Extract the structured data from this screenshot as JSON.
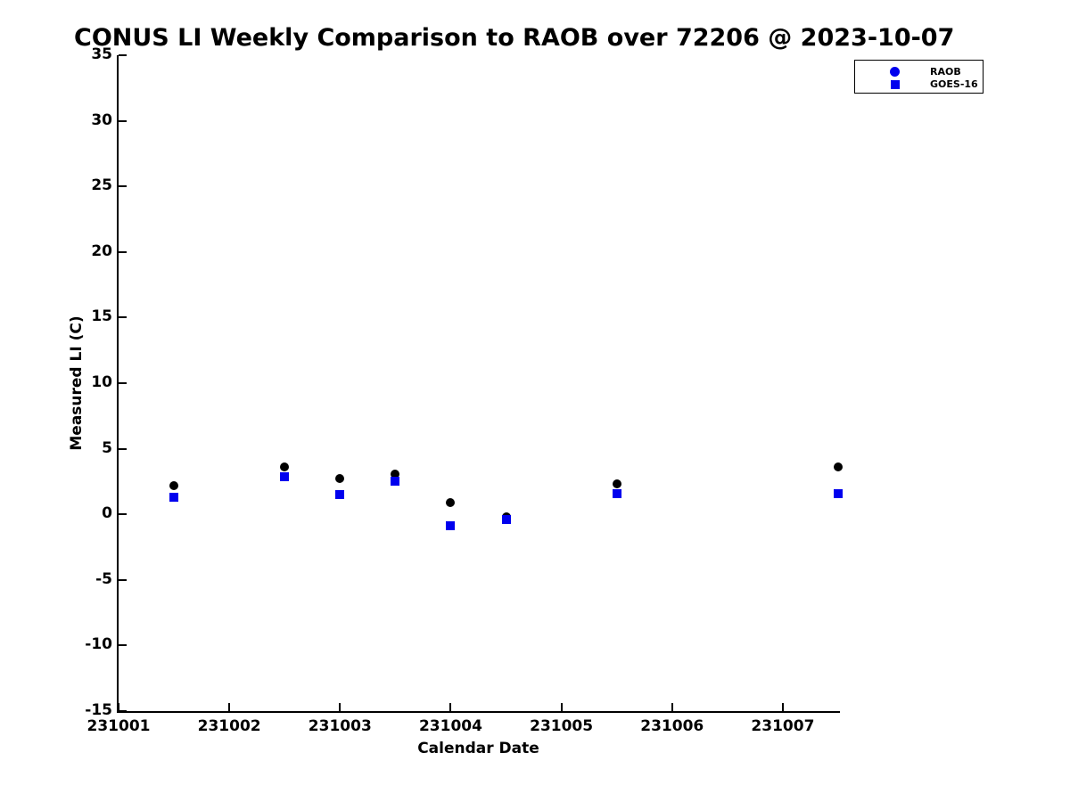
{
  "title": "CONUS LI Weekly Comparison to RAOB over 72206 @ 2023-10-07",
  "colors": {
    "raob_marker": "#000000",
    "goes16_marker": "#0000ee",
    "legend_marker": "#0000ee",
    "axis": "#000000",
    "background": "#ffffff"
  },
  "chart_data": {
    "type": "scatter",
    "title": "CONUS LI Weekly Comparison to RAOB over 72206 @ 2023-10-07",
    "xlabel": "Calendar Date",
    "ylabel": "Measured LI (C)",
    "xlim": [
      231001,
      231007.5
    ],
    "ylim": [
      -15,
      35
    ],
    "x_ticks": [
      231001,
      231002,
      231003,
      231004,
      231005,
      231006,
      231007
    ],
    "y_ticks": [
      35,
      30,
      25,
      20,
      15,
      10,
      5,
      0,
      -5,
      -10,
      -15
    ],
    "grid": false,
    "legend_position": "top-right",
    "x": [
      231001.5,
      231002.5,
      231003.0,
      231003.5,
      231004.0,
      231004.5,
      231005.5,
      231007.5
    ],
    "series": [
      {
        "name": "RAOB",
        "marker": "circle",
        "color": "#000000",
        "legend_color": "#0000ee",
        "values": [
          2.2,
          3.6,
          2.7,
          3.1,
          0.9,
          -0.2,
          2.3,
          3.6
        ]
      },
      {
        "name": "GOES-16",
        "marker": "square",
        "color": "#0000ee",
        "legend_color": "#0000ee",
        "values": [
          1.3,
          2.9,
          1.5,
          2.5,
          -0.9,
          -0.4,
          1.6,
          1.6
        ]
      }
    ]
  }
}
